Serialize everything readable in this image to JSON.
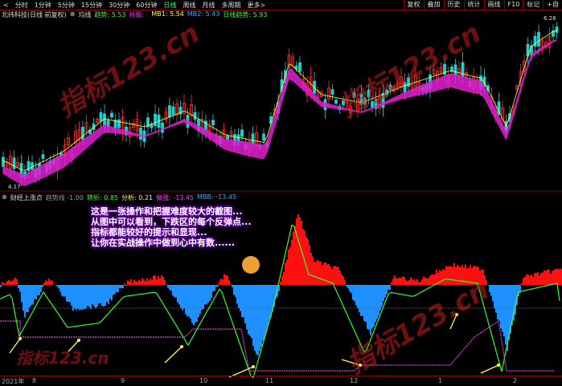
{
  "toolbar": {
    "back": "<",
    "tabs": [
      "分时",
      "1分钟",
      "5分钟",
      "15分钟",
      "30分钟",
      "60分钟",
      "日线",
      "周线",
      "月线",
      "多周期",
      "更多>"
    ],
    "active": "日线",
    "right": [
      "复权",
      "叠加",
      "历史",
      "统计",
      "画线",
      "F10",
      "标记",
      "+自"
    ]
  },
  "main_info": {
    "title": "北纬科技(日线 前复权)",
    "icon": "plus-circle-icon",
    "ma_label": "均线",
    "trend": "趋势: 5.53",
    "hold": "持股: ·",
    "mb1": "MB1: 5.54",
    "mb2": "MB2: 5.43",
    "daily": "日线趋势: 5.93"
  },
  "prices": {
    "high": "6.28",
    "low": "4.17"
  },
  "indicator_info": {
    "name": "财经上涨点",
    "a": "趋势线 -1.00",
    "b": "转折: 0.85",
    "c": "分析: 0.21",
    "d": "做强: -13.45",
    "e": "MBB: -13.45"
  },
  "note": [
    "这是一张操作和把握难度较大的截图...",
    "从图中可以看到，下跌区的每个反弹点...",
    "指标都能较好的提示和显现...",
    "让你在实战操作中做到心中有数......"
  ],
  "axis": [
    "2021年",
    "8",
    "9",
    "10",
    "11",
    "12",
    "1",
    "2"
  ],
  "watermark": "指标123.cn",
  "colors": {
    "up": "#ff3030",
    "down": "#20d0d0",
    "ribbon": "#e020d0",
    "ribbon_dark": "#2a8a5a",
    "red_area": "#ff1010",
    "blue_area": "#1e90ff",
    "green_line": "#30ff30",
    "purple_line": "#e040e0",
    "arrow": "#ffff30"
  }
}
